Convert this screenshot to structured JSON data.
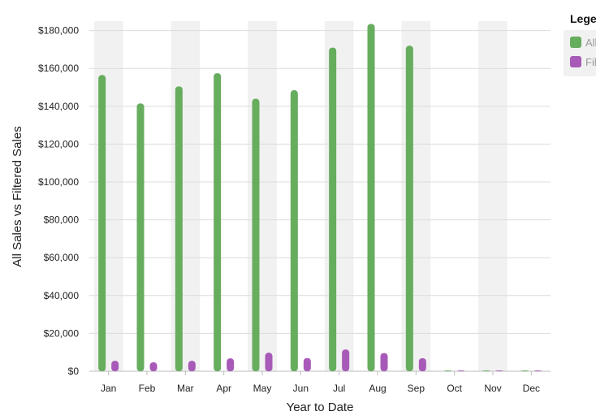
{
  "chart_data": {
    "type": "bar",
    "xlabel": "Year to Date",
    "ylabel": "All Sales vs Filtered Sales",
    "ylim": [
      0,
      185000
    ],
    "yticks": [
      0,
      20000,
      40000,
      60000,
      80000,
      100000,
      120000,
      140000,
      160000,
      180000
    ],
    "ytick_labels": [
      "$0",
      "$20,000",
      "$40,000",
      "$60,000",
      "$80,000",
      "$100,000",
      "$120,000",
      "$140,000",
      "$160,000",
      "$180,000"
    ],
    "categories": [
      "Jan",
      "Feb",
      "Mar",
      "Apr",
      "May",
      "Jun",
      "Jul",
      "Aug",
      "Sep",
      "Oct",
      "Nov",
      "Dec"
    ],
    "series": [
      {
        "name": "All",
        "color": "#66ad5e",
        "values": [
          156500,
          141500,
          150500,
          157500,
          144000,
          148500,
          171000,
          183500,
          172000,
          0,
          0,
          0
        ]
      },
      {
        "name": "Fil",
        "color": "#a75ab7",
        "values": [
          5500,
          4700,
          5500,
          6800,
          9800,
          7000,
          11500,
          9600,
          6900,
          0,
          0,
          0
        ]
      }
    ],
    "grid": true,
    "alternating_bands": true,
    "legend": {
      "title": "Legen",
      "placement": "right"
    }
  }
}
